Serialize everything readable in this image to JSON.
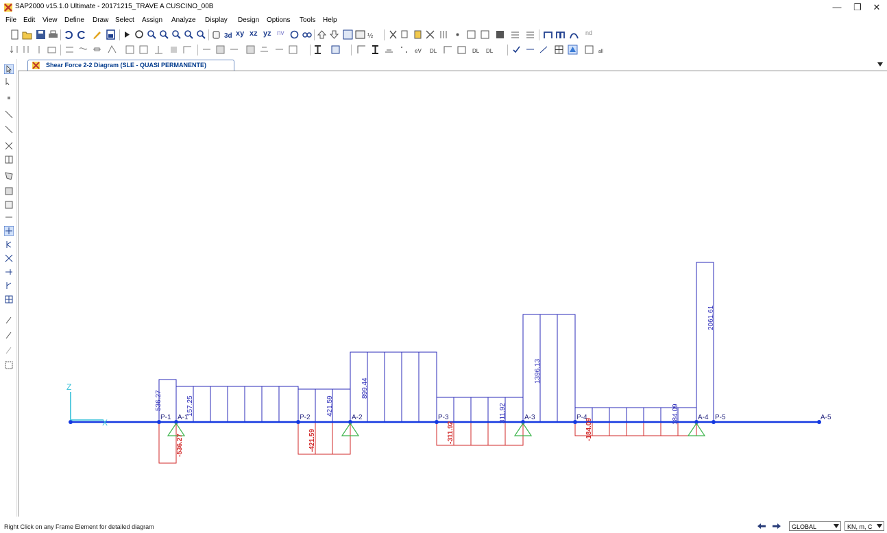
{
  "window": {
    "title": "SAP2000 v15.1.0 Ultimate  - 20171215_TRAVE A CUSCINO_00B",
    "controls": [
      "minimize-icon",
      "restore-icon",
      "close-icon"
    ]
  },
  "menu": [
    {
      "label": "File"
    },
    {
      "label": "Edit"
    },
    {
      "label": "View"
    },
    {
      "label": "Define"
    },
    {
      "label": "Draw"
    },
    {
      "label": "Select"
    },
    {
      "label": "Assign"
    },
    {
      "label": "Analyze"
    },
    {
      "label": "Display"
    },
    {
      "label": "Design"
    },
    {
      "label": "Options"
    },
    {
      "label": "Tools"
    },
    {
      "label": "Help"
    }
  ],
  "toolbar1": {
    "labels": [
      "xy",
      "xz",
      "yz",
      "nv",
      "nd"
    ]
  },
  "tab": {
    "label": "Shear Force 2-2 Diagram  (SLE - QUASI PERMANENTE)"
  },
  "diagram": {
    "axis_label_z": "Z",
    "axis_label_x": "X",
    "joint_labels": [
      "P-1",
      "A-1",
      "P-2",
      "A-2",
      "P-3",
      "A-3",
      "P-4",
      "A-4",
      "P-5",
      "A-5"
    ],
    "positive_values": [
      "536.27",
      "157.25",
      "421.59",
      "899.44",
      "311.92",
      "1396.13",
      "184.09",
      "2061.61"
    ],
    "negative_values": [
      "-536.27",
      "-421.59",
      "-311.92",
      "-184.09"
    ],
    "positive_color": "#2b2bb8",
    "negative_color": "#d22a2a",
    "beam_color": "#1438e0",
    "support_color": "#3cb44b"
  },
  "status": {
    "message": "Right Click on any Frame Element for detailed diagram",
    "coord_system": "GLOBAL",
    "units": "KN, m, C"
  }
}
